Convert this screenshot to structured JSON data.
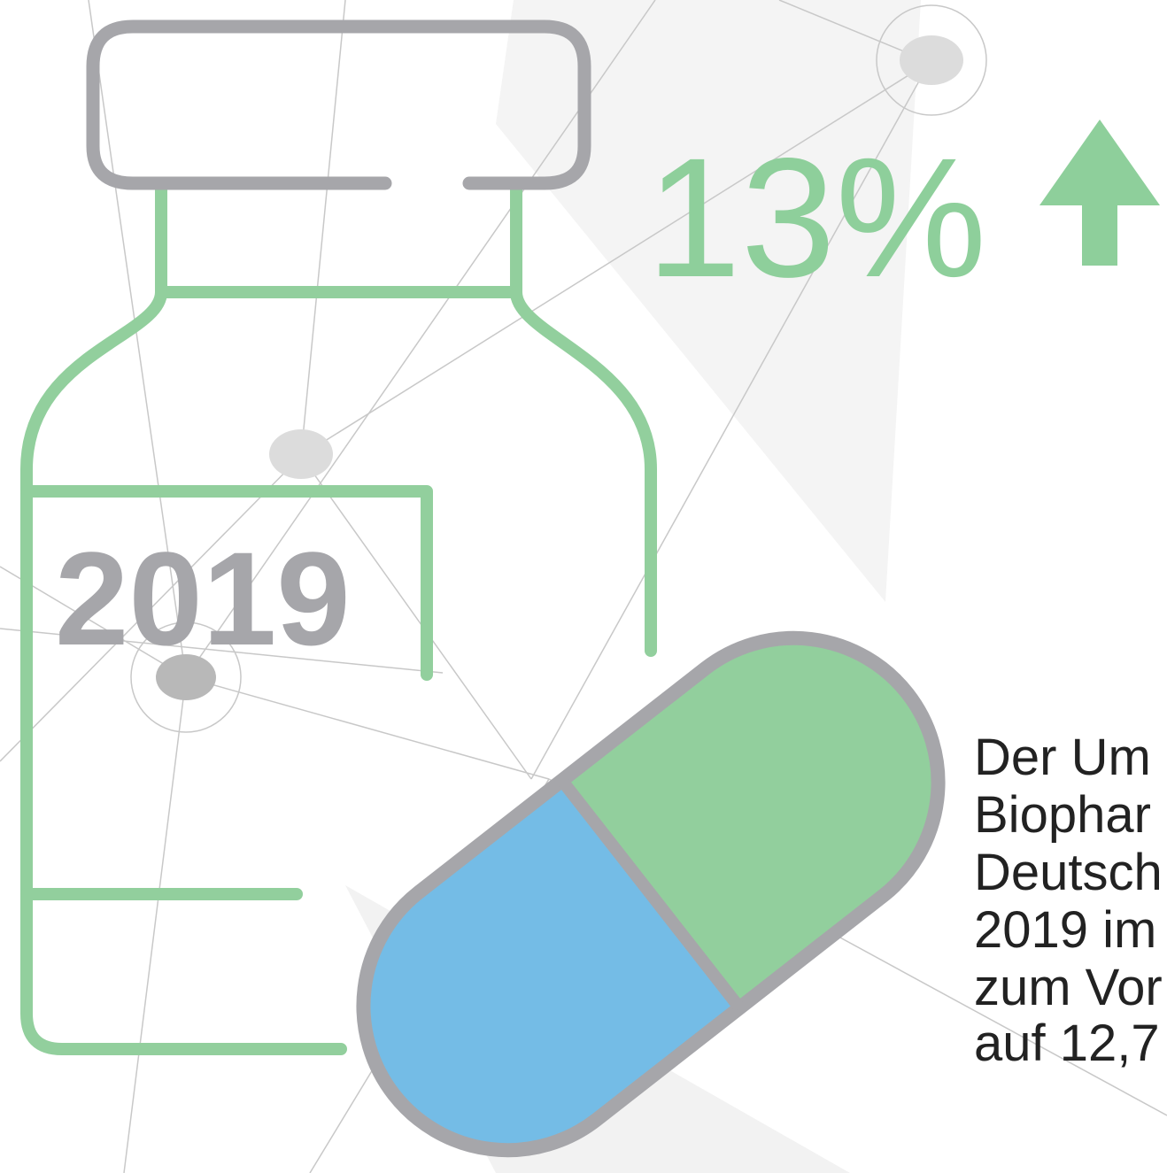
{
  "headline": {
    "value": "13%"
  },
  "label": {
    "year": "2019"
  },
  "text": {
    "lines": [
      "Der Um",
      "Biophar",
      "Deutsch",
      "2019 im",
      "zum Vor",
      "auf 12,7"
    ]
  }
}
